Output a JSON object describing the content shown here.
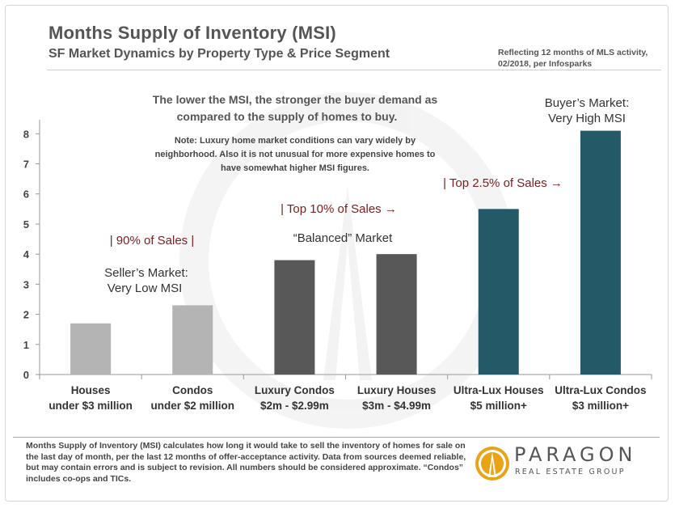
{
  "header": {
    "title": "Months Supply of Inventory (MSI)",
    "subtitle": "SF Market Dynamics by Property Type & Price Segment",
    "reflecting": "Reflecting 12 months of MLS activity, 02/2018, per Infosparks"
  },
  "chart_data": {
    "type": "bar",
    "categories": [
      [
        "Houses",
        "under $3 million"
      ],
      [
        "Condos",
        "under $2 million"
      ],
      [
        "Luxury Condos",
        "$2m - $2.99m"
      ],
      [
        "Luxury Houses",
        "$3m - $4.99m"
      ],
      [
        "Ultra-Lux Houses",
        "$5 million+"
      ],
      [
        "Ultra-Lux Condos",
        "$3 million+"
      ]
    ],
    "values": [
      1.7,
      2.3,
      3.8,
      4.0,
      5.5,
      8.1
    ],
    "bar_colors": [
      "#b4b4b4",
      "#b4b4b4",
      "#585858",
      "#585858",
      "#245a67",
      "#245a67"
    ],
    "ylim": [
      0,
      8.6
    ],
    "yticks": [
      "0",
      "1",
      "2",
      "3",
      "4",
      "5",
      "6",
      "7",
      "8"
    ],
    "title": "Months Supply of Inventory (MSI)",
    "xlabel": "",
    "ylabel": "",
    "annotations": {
      "headline": [
        "The lower the MSI, the stronger the buyer demand as",
        "compared to the supply of homes to buy."
      ],
      "note": [
        "Note: Luxury home market conditions can vary widely by",
        "neighborhood. Also it is not unusual for more expensive homes to",
        "have somewhat higher MSI figures."
      ],
      "segment_90": "| 90% of Sales |",
      "segment_10": "| Top 10% of Sales →",
      "segment_2_5": "| Top 2.5% of Sales →",
      "sellers_market": [
        "Seller’s Market:",
        "Very Low MSI"
      ],
      "balanced_market": "“Balanced” Market",
      "buyers_market": [
        "Buyer’s Market:",
        "Very High MSI"
      ]
    }
  },
  "footer": {
    "text": "Months Supply of Inventory (MSI) calculates how long it would take to sell the inventory of homes for sale on the last day of month, per the last 12 months of offer-acceptance activity. Data from sources deemed reliable, but may contain errors and is subject to revision. All numbers should be considered approximate. “Condos” includes co-ops and TICs."
  },
  "logo": {
    "name": "PARAGON",
    "tagline": "REAL ESTATE GROUP"
  },
  "colors": {
    "accent_red": "#7a2020",
    "text_gray": "#555555",
    "teal": "#245a67"
  }
}
